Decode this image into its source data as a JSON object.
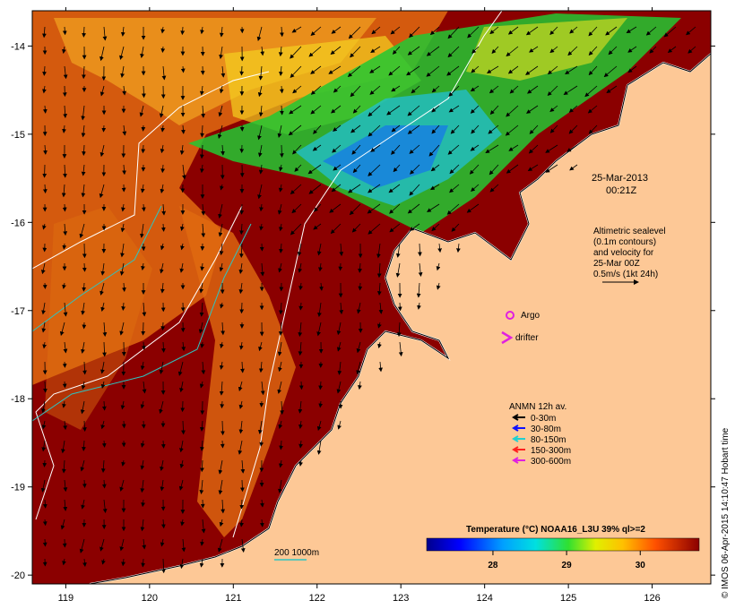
{
  "map": {
    "lon_range": [
      118.6,
      126.7
    ],
    "lat_range": [
      -20.1,
      -13.6
    ],
    "lon_ticks": [
      "119",
      "120",
      "121",
      "122",
      "123",
      "124",
      "125",
      "126"
    ],
    "lat_ticks": [
      "-14",
      "-15",
      "-16",
      "-17",
      "-18",
      "-19",
      "-20"
    ],
    "colors": {
      "land": "#fdc896",
      "hot_ocean": "#8b0000",
      "cool_ocean": "#22c832",
      "coast": "#ffffff",
      "contour": "#ffffff",
      "isobath": "#2ec4c0"
    }
  },
  "timestamp": {
    "date": "25-Mar-2013",
    "time": "00:21Z"
  },
  "altimetry_note": [
    "Altimetric sealevel",
    "(0.1m contours)",
    "and velocity for",
    "25-Mar 00Z",
    "0.5m/s (1kt 24h)"
  ],
  "markers": {
    "argo_label": "Argo",
    "drifter_label": "drifter",
    "argo_color": "#e020e0",
    "drifter_color": "#e020e0"
  },
  "legend": {
    "title": "ANMN 12h av.",
    "items": [
      {
        "label": "0-30m",
        "color": "#000000"
      },
      {
        "label": "30-80m",
        "color": "#1010ff"
      },
      {
        "label": "80-150m",
        "color": "#20d0d0"
      },
      {
        "label": "150-300m",
        "color": "#ff2020"
      },
      {
        "label": "300-600m",
        "color": "#e020e0"
      }
    ]
  },
  "isobath_label": "200  1000m",
  "colorbar": {
    "title": "Temperature (°C) NOAA16_L3U 39% ql>=2",
    "range": [
      27.1,
      30.8
    ],
    "ticks": [
      "28",
      "29",
      "30"
    ]
  },
  "credit": "© IMOS 06-Apr-2015 14:10:47 Hobart time"
}
